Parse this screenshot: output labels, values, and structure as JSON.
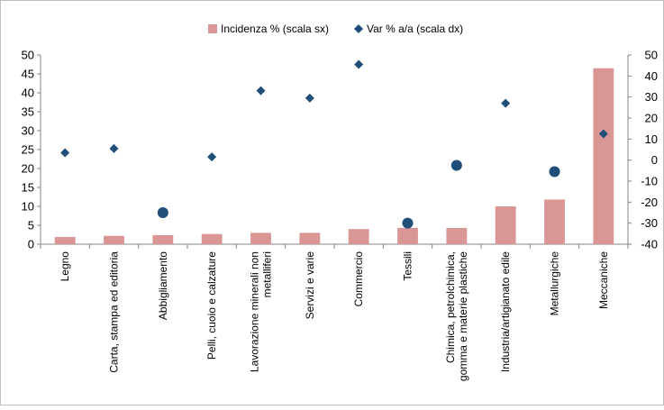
{
  "chart_data": {
    "type": "bar",
    "categories": [
      "Legno",
      "Carta, stampa ed editoria",
      "Abbigliamento",
      "Pelli, cuoio e calzature",
      "Lavorazione minerali non metalliferi",
      "Servizi e varie",
      "Commercio",
      "Tessili",
      "Chimica, petrolchimica, gomma e materie plastiche",
      "Industria/artigianato edile",
      "Metallurgiche",
      "Meccaniche"
    ],
    "category_lines": [
      [
        "Legno"
      ],
      [
        "Carta, stampa ed editoria"
      ],
      [
        "Abbigliamento"
      ],
      [
        "Pelli, cuoio e calzature"
      ],
      [
        "Lavorazione minerali non",
        "metalliferi"
      ],
      [
        "Servizi e varie"
      ],
      [
        "Commercio"
      ],
      [
        "Tessili"
      ],
      [
        "Chimica, petrolchimica,",
        "gomma e materie plastiche"
      ],
      [
        "Industria/artigianato edile"
      ],
      [
        "Metallurgiche"
      ],
      [
        "Meccaniche"
      ]
    ],
    "series": [
      {
        "name": "Incidenza % (scala sx)",
        "type": "bar",
        "axis": "left",
        "color": "#d99694",
        "values": [
          1.9,
          2.2,
          2.4,
          2.7,
          3.0,
          3.0,
          4.0,
          4.3,
          4.3,
          10.0,
          11.8,
          46.5
        ]
      },
      {
        "name": "Var % a/a (scala dx)",
        "type": "scatter",
        "axis": "right",
        "color": "#1f4e79",
        "values": [
          3.5,
          5.5,
          -25,
          1.5,
          33,
          29.5,
          45.5,
          -30,
          -2.5,
          27,
          -5.5,
          12.5
        ],
        "marker": [
          "diamond",
          "diamond",
          "circle",
          "diamond",
          "diamond",
          "diamond",
          "diamond",
          "circle",
          "circle",
          "diamond",
          "circle",
          "diamond"
        ]
      }
    ],
    "y_left": {
      "min": 0,
      "max": 50,
      "step": 5,
      "ticks": [
        "0",
        "5",
        "10",
        "15",
        "20",
        "25",
        "30",
        "35",
        "40",
        "45",
        "50"
      ]
    },
    "y_right": {
      "min": -40,
      "max": 50,
      "step": 10,
      "ticks": [
        "-40",
        "-30",
        "-20",
        "-10",
        "0",
        "10",
        "20",
        "30",
        "40",
        "50"
      ]
    },
    "grid": false,
    "legend_position": "top"
  }
}
